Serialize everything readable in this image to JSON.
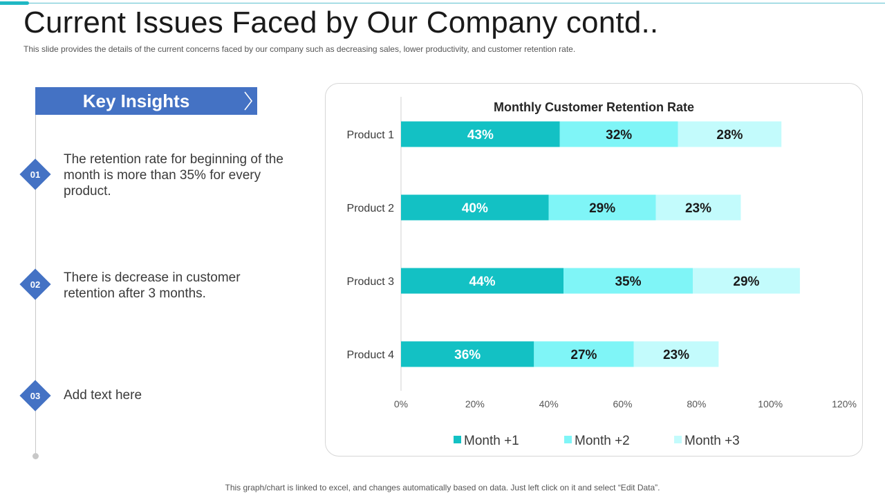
{
  "header": {
    "title": "Current Issues Faced by Our Company contd..",
    "subtitle": "This slide provides the details of the current concerns faced by our company such as decreasing sales, lower productivity, and customer retention rate."
  },
  "insights": {
    "title": "Key Insights",
    "items": [
      {
        "num": "01",
        "text": "The retention rate for beginning of the month is more than 35% for every product."
      },
      {
        "num": "02",
        "text": "There is decrease in customer retention after 3 months."
      },
      {
        "num": "03",
        "text": "Add text here"
      }
    ]
  },
  "colors": {
    "accent": "#4472c4",
    "series": [
      "#13c1c4",
      "#7ff5f7",
      "#c3fbfc"
    ]
  },
  "chart_data": {
    "type": "bar",
    "orientation": "horizontal",
    "stacked": true,
    "title": "Monthly Customer Retention Rate",
    "categories": [
      "Product 1",
      "Product 2",
      "Product 3",
      "Product 4"
    ],
    "series": [
      {
        "name": "Month +1",
        "values": [
          43,
          40,
          44,
          36
        ],
        "labels": [
          "43%",
          "40%",
          "44%",
          "36%"
        ]
      },
      {
        "name": "Month +2",
        "values": [
          32,
          29,
          35,
          27
        ],
        "labels": [
          "32%",
          "29%",
          "35%",
          "27%"
        ]
      },
      {
        "name": "Month +3",
        "values": [
          28,
          23,
          29,
          23
        ],
        "labels": [
          "28%",
          "23%",
          "29%",
          "23%"
        ]
      }
    ],
    "xlim": [
      0,
      120
    ],
    "xticks": [
      "0%",
      "20%",
      "40%",
      "60%",
      "80%",
      "100%",
      "120%"
    ],
    "legend": "bottom",
    "grid": false
  },
  "footer": "This graph/chart is linked to excel, and changes automatically based on data. Just left click on it and select “Edit Data”."
}
